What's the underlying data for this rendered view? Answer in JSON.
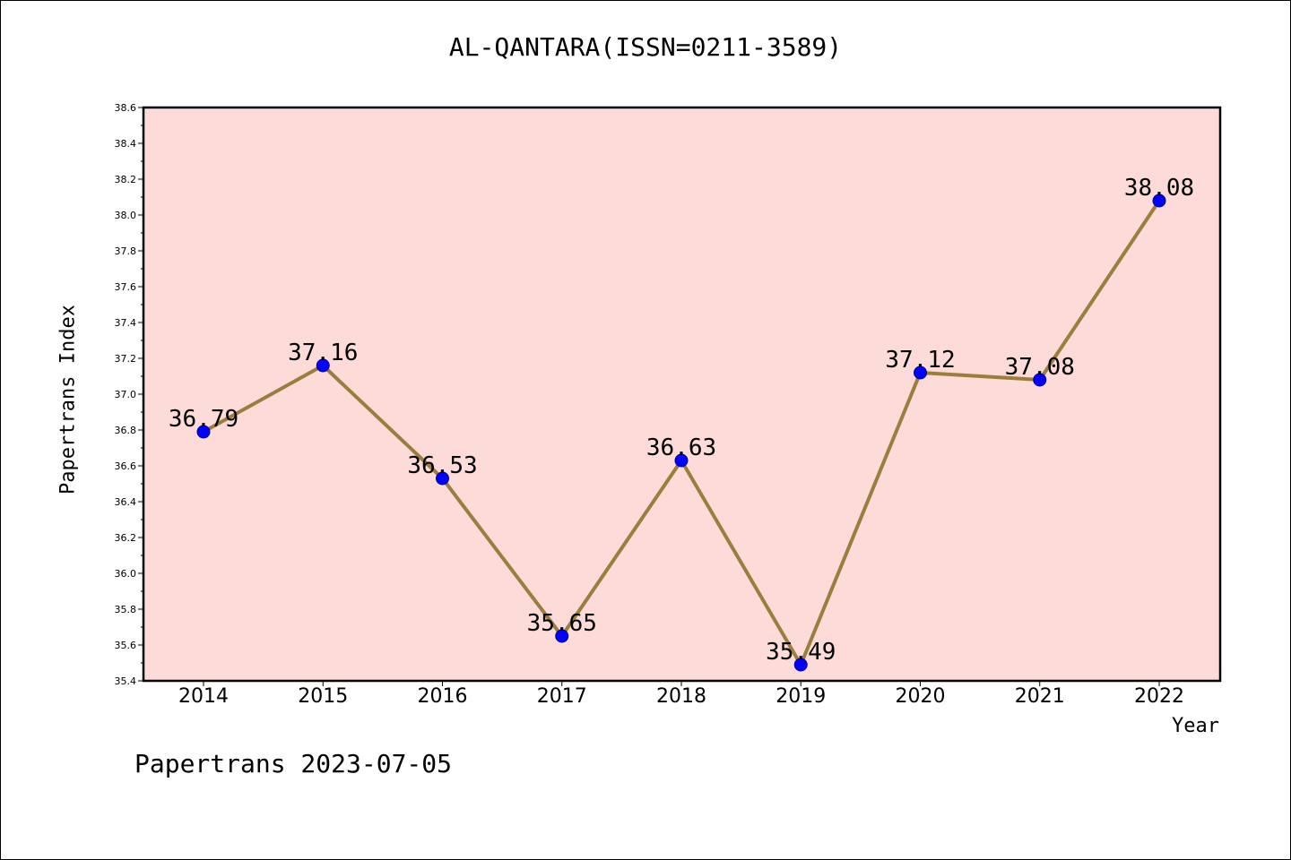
{
  "chart_data": {
    "type": "line",
    "title": "AL-QANTARA(ISSN=0211-3589)",
    "xlabel": "Year",
    "ylabel": "Papertrans Index",
    "categories": [
      "2014",
      "2015",
      "2016",
      "2017",
      "2018",
      "2019",
      "2020",
      "2021",
      "2022"
    ],
    "values": [
      36.79,
      37.16,
      36.53,
      35.65,
      36.63,
      35.49,
      37.12,
      37.08,
      38.08
    ],
    "data_labels": [
      "36.79",
      "37.16",
      "36.53",
      "35.65",
      "36.63",
      "35.49",
      "37.12",
      "37.08",
      "38.08"
    ],
    "ylim": [
      35.4,
      38.6
    ],
    "yticks": [
      "35.4",
      "35.6",
      "35.8",
      "36.0",
      "36.2",
      "36.4",
      "36.6",
      "36.8",
      "37.0",
      "37.2",
      "37.4",
      "37.6",
      "37.8",
      "38.0",
      "38.2",
      "38.4",
      "38.6"
    ],
    "grid": false,
    "colors": {
      "plot_background": "#fddbd9",
      "line": "#9b7d3c",
      "marker": "#0000ff"
    }
  },
  "footer": "Papertrans 2023-07-05"
}
